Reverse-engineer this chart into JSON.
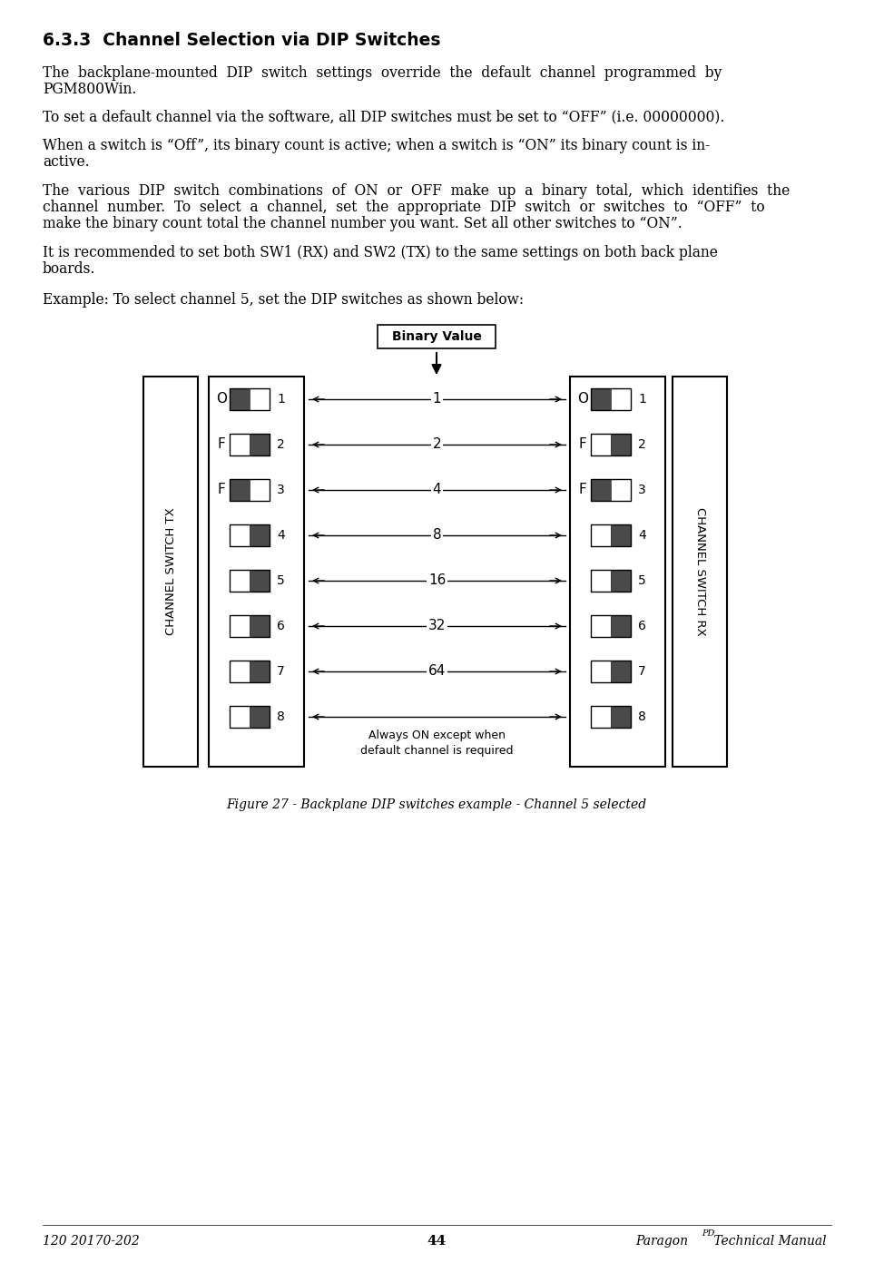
{
  "title": "6.3.3  Channel Selection via DIP Switches",
  "para1": "The  backplane-mounted  DIP  switch  settings  override  the  default  channel  programmed  by\nPGM800Win.",
  "para2": "To set a default channel via the software, all DIP switches must be set to “OFF” (i.e. 00000000).",
  "para3": "When a switch is “Off”, its binary count is active; when a switch is “ON” its binary count is in-\nactive.",
  "para4": "The  various  DIP  switch  combinations  of  ON  or  OFF  make  up  a  binary  total,  which  identifies  the\nchannel  number.  To  select  a  channel,  set  the  appropriate  DIP  switch  or  switches  to  “OFF”  to\nmake the binary count total the channel number you want. Set all other switches to “ON”.",
  "para5": "It is recommended to set both SW1 (RX) and SW2 (TX) to the same settings on both back plane\nboards.",
  "para6": "Example: To select channel 5, set the DIP switches as shown below:",
  "binary_label": "Binary Value",
  "binary_values": [
    "1",
    "2",
    "4",
    "8",
    "16",
    "32",
    "64"
  ],
  "always_on_label": "Always ON except when\ndefault channel is required",
  "tx_label": "CHANNEL SWITCH TX",
  "rx_label": "CHANNEL SWITCH RX",
  "off_letters": [
    "O",
    "F",
    "F"
  ],
  "figure_caption": "Figure 27 - Backplane DIP switches example - Channel 5 selected",
  "footer_left": "120 20170-202",
  "footer_center": "44",
  "footer_right": "Paragon",
  "footer_right_super": "PD",
  "footer_right2": " Technical Manual",
  "bg_color": "#ffffff",
  "text_color": "#000000",
  "switch_dark": "#4a4a4a",
  "switch_light": "#ffffff",
  "tx_dark_left": [
    true,
    false,
    true,
    false,
    false,
    false,
    false,
    false
  ],
  "rx_dark_left": [
    true,
    false,
    true,
    false,
    false,
    false,
    false,
    false
  ]
}
